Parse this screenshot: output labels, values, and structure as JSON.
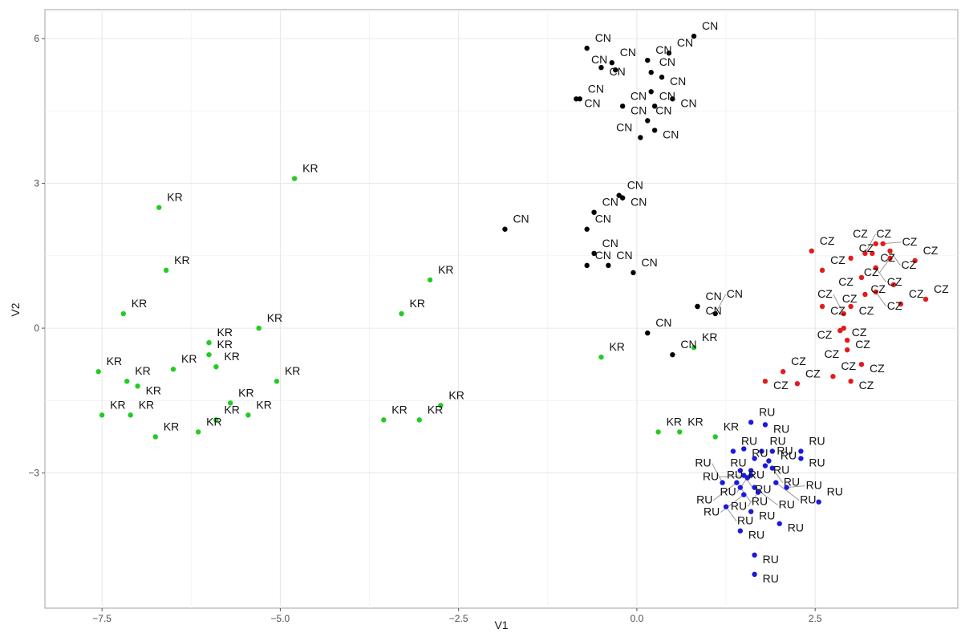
{
  "chart_data": {
    "type": "scatter",
    "title": "",
    "xlabel": "V1",
    "ylabel": "V2",
    "xlim": [
      -8.3,
      4.5
    ],
    "ylim": [
      -5.8,
      6.6
    ],
    "x_ticks": [
      -7.5,
      -5.0,
      -2.5,
      0.0,
      2.5
    ],
    "x_tick_labels": [
      "−7.5",
      "−5.0",
      "−2.5",
      "0.0",
      "2.5"
    ],
    "y_ticks": [
      -3,
      0,
      3,
      6
    ],
    "y_tick_labels": [
      "−3",
      "0",
      "3",
      "6"
    ],
    "grid": true,
    "legend": "none",
    "colors": {
      "KR": "#22cc22",
      "CN": "#000000",
      "CZ": "#e41a1c",
      "RU": "#1a1adb"
    },
    "series": [
      {
        "group": "KR",
        "points": [
          [
            -4.8,
            3.1
          ],
          [
            -6.7,
            2.5
          ],
          [
            -6.6,
            1.2
          ],
          [
            -7.2,
            0.3
          ],
          [
            -5.3,
            0.0
          ],
          [
            -6.0,
            -0.3
          ],
          [
            -6.0,
            -0.55
          ],
          [
            -6.5,
            -0.85
          ],
          [
            -5.9,
            -0.8
          ],
          [
            -7.55,
            -0.9
          ],
          [
            -7.15,
            -1.1
          ],
          [
            -7.0,
            -1.2
          ],
          [
            -5.05,
            -1.1
          ],
          [
            -5.7,
            -1.55
          ],
          [
            -5.45,
            -1.8
          ],
          [
            -5.9,
            -1.9
          ],
          [
            -6.15,
            -2.15
          ],
          [
            -7.5,
            -1.8
          ],
          [
            -7.1,
            -1.8
          ],
          [
            -6.75,
            -2.25
          ],
          [
            -3.55,
            -1.9
          ],
          [
            -3.05,
            -1.9
          ],
          [
            -2.75,
            -1.6
          ],
          [
            -2.9,
            1.0
          ],
          [
            -3.3,
            0.3
          ],
          [
            -0.5,
            -0.6
          ],
          [
            0.8,
            -0.4
          ],
          [
            0.3,
            -2.15
          ],
          [
            0.6,
            -2.15
          ],
          [
            1.1,
            -2.25
          ]
        ]
      },
      {
        "group": "CN",
        "points": [
          [
            0.8,
            6.05
          ],
          [
            -0.7,
            5.8
          ],
          [
            0.45,
            5.7
          ],
          [
            0.15,
            5.55
          ],
          [
            -0.35,
            5.5
          ],
          [
            -0.5,
            5.4
          ],
          [
            -0.3,
            5.35
          ],
          [
            0.2,
            5.3
          ],
          [
            0.35,
            5.2
          ],
          [
            0.2,
            4.9
          ],
          [
            -0.8,
            4.75
          ],
          [
            0.5,
            4.75
          ],
          [
            0.25,
            4.6
          ],
          [
            -0.2,
            4.6
          ],
          [
            0.15,
            4.3
          ],
          [
            0.25,
            4.1
          ],
          [
            0.05,
            3.95
          ],
          [
            -0.25,
            2.75
          ],
          [
            -0.2,
            2.7
          ],
          [
            -0.6,
            2.4
          ],
          [
            -0.7,
            2.05
          ],
          [
            -1.85,
            2.05
          ],
          [
            -0.6,
            1.55
          ],
          [
            -0.7,
            1.3
          ],
          [
            -0.4,
            1.3
          ],
          [
            -0.05,
            1.15
          ],
          [
            0.85,
            0.45
          ],
          [
            0.85,
            0.45
          ],
          [
            1.1,
            0.3
          ],
          [
            0.15,
            -0.1
          ],
          [
            0.5,
            -0.55
          ],
          [
            -0.85,
            4.75
          ]
        ]
      },
      {
        "group": "CZ",
        "points": [
          [
            2.45,
            1.6
          ],
          [
            2.6,
            1.2
          ],
          [
            3.0,
            1.45
          ],
          [
            3.2,
            1.55
          ],
          [
            3.3,
            1.55
          ],
          [
            3.35,
            1.75
          ],
          [
            3.45,
            1.75
          ],
          [
            3.55,
            1.6
          ],
          [
            3.55,
            1.45
          ],
          [
            3.9,
            1.4
          ],
          [
            3.35,
            1.25
          ],
          [
            3.15,
            1.05
          ],
          [
            3.6,
            0.9
          ],
          [
            3.2,
            0.7
          ],
          [
            3.35,
            0.75
          ],
          [
            4.05,
            0.6
          ],
          [
            3.7,
            0.5
          ],
          [
            2.6,
            0.45
          ],
          [
            3.0,
            0.45
          ],
          [
            2.9,
            0.3
          ],
          [
            2.9,
            0.0
          ],
          [
            2.85,
            -0.05
          ],
          [
            2.95,
            -0.25
          ],
          [
            2.95,
            -0.45
          ],
          [
            3.15,
            -0.75
          ],
          [
            2.75,
            -1.0
          ],
          [
            3.0,
            -1.1
          ],
          [
            2.05,
            -0.9
          ],
          [
            1.8,
            -1.1
          ],
          [
            2.25,
            -1.15
          ]
        ]
      },
      {
        "group": "RU",
        "points": [
          [
            1.6,
            -1.95
          ],
          [
            1.8,
            -2.0
          ],
          [
            1.35,
            -2.55
          ],
          [
            1.5,
            -2.5
          ],
          [
            1.65,
            -2.7
          ],
          [
            1.75,
            -2.55
          ],
          [
            1.9,
            -2.55
          ],
          [
            2.3,
            -2.55
          ],
          [
            2.3,
            -2.7
          ],
          [
            1.45,
            -2.95
          ],
          [
            1.6,
            -2.95
          ],
          [
            1.8,
            -2.85
          ],
          [
            1.9,
            -2.9
          ],
          [
            1.5,
            -3.05
          ],
          [
            1.55,
            -3.1
          ],
          [
            1.6,
            -3.05
          ],
          [
            1.2,
            -3.2
          ],
          [
            1.4,
            -3.2
          ],
          [
            1.45,
            -3.3
          ],
          [
            1.5,
            -3.45
          ],
          [
            1.65,
            -3.3
          ],
          [
            1.7,
            -3.4
          ],
          [
            1.95,
            -3.2
          ],
          [
            2.1,
            -3.3
          ],
          [
            2.55,
            -3.6
          ],
          [
            1.25,
            -3.7
          ],
          [
            1.6,
            -3.8
          ],
          [
            2.0,
            -4.05
          ],
          [
            1.45,
            -4.2
          ],
          [
            1.65,
            -4.7
          ],
          [
            1.65,
            -5.1
          ],
          [
            1.85,
            -2.75
          ]
        ]
      }
    ]
  }
}
